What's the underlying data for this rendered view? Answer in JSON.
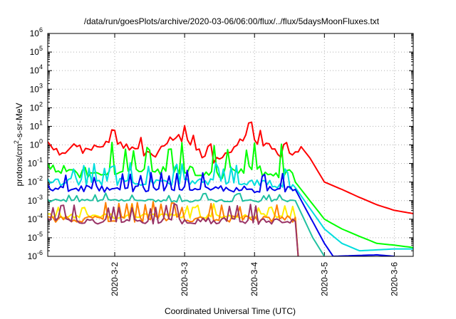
{
  "chart_data": {
    "type": "line",
    "title": "/data/run/goesPlots/archive/2020-03-06/06:00/flux/../flux/5daysMoonFluxes.txt",
    "xlabel": "Coordinated Universal Time (UTC)",
    "ylabel": "protons/cm2-s-sr-MeV",
    "ylabel_parts": {
      "base": "protons/cm",
      "sup": "2",
      "tail": "-s-sr-MeV"
    },
    "x_scale": "date",
    "xlim": [
      "2020-03-01T01:00",
      "2020-03-06T06:30"
    ],
    "x_ticks": [
      {
        "t": "2020-03-02T00:00",
        "label": "2020-3-2"
      },
      {
        "t": "2020-03-03T00:00",
        "label": "2020-3-3"
      },
      {
        "t": "2020-03-04T00:00",
        "label": "2020-3-4"
      },
      {
        "t": "2020-03-05T00:00",
        "label": "2020-3-5"
      },
      {
        "t": "2020-03-06T00:00",
        "label": "2020-3-6"
      }
    ],
    "y_scale": "log",
    "ylim": [
      1e-06,
      1000000.0
    ],
    "y_ticks": [
      {
        "v": 1e-06,
        "base": "10",
        "exp": "-6"
      },
      {
        "v": 1e-05,
        "base": "10",
        "exp": "-5"
      },
      {
        "v": 0.0001,
        "base": "10",
        "exp": "-4"
      },
      {
        "v": 0.001,
        "base": "10",
        "exp": "-3"
      },
      {
        "v": 0.01,
        "base": "10",
        "exp": "-2"
      },
      {
        "v": 0.1,
        "base": "10",
        "exp": "-1"
      },
      {
        "v": 1,
        "base": "10",
        "exp": "0"
      },
      {
        "v": 10,
        "base": "10",
        "exp": "1"
      },
      {
        "v": 100,
        "base": "10",
        "exp": "2"
      },
      {
        "v": 1000,
        "base": "10",
        "exp": "3"
      },
      {
        "v": 10000,
        "base": "10",
        "exp": "4"
      },
      {
        "v": 100000,
        "base": "10",
        "exp": "5"
      },
      {
        "v": 1000000,
        "base": "10",
        "exp": "6"
      }
    ],
    "grid": true,
    "legend": "none",
    "series": [
      {
        "color": "#ff0000",
        "points": [
          [
            "2020-03-01T01:00",
            1.0
          ],
          [
            "2020-03-01T04:00",
            0.5
          ],
          [
            "2020-03-01T07:00",
            0.3
          ],
          [
            "2020-03-01T10:00",
            1.2
          ],
          [
            "2020-03-01T13:00",
            0.5
          ],
          [
            "2020-03-01T16:00",
            0.7
          ],
          [
            "2020-03-01T19:00",
            1.0
          ],
          [
            "2020-03-01T22:00",
            1.5
          ],
          [
            "2020-03-02T01:00",
            1.0
          ],
          [
            "2020-03-02T04:00",
            0.9
          ],
          [
            "2020-03-02T07:00",
            0.6
          ],
          [
            "2020-03-02T10:00",
            0.35
          ],
          [
            "2020-03-02T13:00",
            0.25
          ],
          [
            "2020-03-02T16:00",
            0.6
          ],
          [
            "2020-03-02T19:00",
            2.0
          ],
          [
            "2020-03-02T22:00",
            2.5
          ],
          [
            "2020-03-03T01:00",
            1.5
          ],
          [
            "2020-03-03T04:00",
            0.6
          ],
          [
            "2020-03-03T07:00",
            0.2
          ],
          [
            "2020-03-03T10:00",
            0.15
          ],
          [
            "2020-03-03T13:00",
            0.3
          ],
          [
            "2020-03-03T16:00",
            0.5
          ],
          [
            "2020-03-03T19:00",
            2.0
          ],
          [
            "2020-03-03T22:00",
            3.0
          ],
          [
            "2020-03-04T01:00",
            1.5
          ],
          [
            "2020-03-04T04:00",
            1.0
          ],
          [
            "2020-03-04T07:00",
            0.5
          ],
          [
            "2020-03-04T10:00",
            0.25
          ],
          [
            "2020-03-04T13:00",
            0.3
          ],
          [
            "2020-03-04T16:00",
            0.8
          ],
          [
            "2020-03-04T19:00",
            0.2
          ],
          [
            "2020-03-05T00:00",
            0.01
          ],
          [
            "2020-03-05T06:00",
            0.004
          ],
          [
            "2020-03-05T12:00",
            0.0015
          ],
          [
            "2020-03-05T18:00",
            0.0006
          ],
          [
            "2020-03-06T00:00",
            0.0003
          ],
          [
            "2020-03-06T06:30",
            0.0002
          ]
        ]
      },
      {
        "color": "#00ff00",
        "points": [
          [
            "2020-03-01T01:00",
            0.05
          ],
          [
            "2020-03-01T12:00",
            0.03
          ],
          [
            "2020-03-02T00:00",
            0.04
          ],
          [
            "2020-03-02T12:00",
            0.03
          ],
          [
            "2020-03-03T00:00",
            0.04
          ],
          [
            "2020-03-03T12:00",
            0.03
          ],
          [
            "2020-03-04T00:00",
            0.04
          ],
          [
            "2020-03-04T12:00",
            0.03
          ],
          [
            "2020-03-04T14:00",
            0.01
          ],
          [
            "2020-03-05T00:00",
            0.0001
          ],
          [
            "2020-03-05T06:00",
            3e-05
          ],
          [
            "2020-03-05T12:00",
            1.2e-05
          ],
          [
            "2020-03-05T18:00",
            5e-06
          ],
          [
            "2020-03-06T00:00",
            4e-06
          ],
          [
            "2020-03-06T06:30",
            3e-06
          ]
        ]
      },
      {
        "color": "#00dddd",
        "points": [
          [
            "2020-03-01T01:00",
            0.01
          ],
          [
            "2020-03-02T00:00",
            0.01
          ],
          [
            "2020-03-03T00:00",
            0.01
          ],
          [
            "2020-03-04T00:00",
            0.01
          ],
          [
            "2020-03-04T14:00",
            0.005
          ],
          [
            "2020-03-05T00:00",
            3e-05
          ],
          [
            "2020-03-05T06:00",
            5e-06
          ],
          [
            "2020-03-05T12:00",
            2e-06
          ],
          [
            "2020-03-06T00:00",
            2.5e-06
          ],
          [
            "2020-03-06T06:30",
            2.5e-06
          ]
        ]
      },
      {
        "color": "#0000ee",
        "points": [
          [
            "2020-03-01T01:00",
            0.005
          ],
          [
            "2020-03-02T00:00",
            0.004
          ],
          [
            "2020-03-03T00:00",
            0.005
          ],
          [
            "2020-03-04T00:00",
            0.004
          ],
          [
            "2020-03-04T14:00",
            0.004
          ],
          [
            "2020-03-05T00:00",
            5e-06
          ],
          [
            "2020-03-05T03:00",
            1e-06
          ],
          [
            "2020-03-05T18:00",
            1.2e-06
          ],
          [
            "2020-03-06T00:00",
            1e-06
          ]
        ]
      },
      {
        "color": "#20c0a0",
        "points": [
          [
            "2020-03-01T01:00",
            0.001
          ],
          [
            "2020-03-04T14:00",
            0.001
          ],
          [
            "2020-03-04T20:00",
            1e-05
          ],
          [
            "2020-03-05T00:00",
            1e-06
          ]
        ]
      },
      {
        "color": "#ffee00",
        "points": [
          [
            "2020-03-01T01:00",
            0.00015
          ],
          [
            "2020-03-04T14:00",
            0.00015
          ],
          [
            "2020-03-04T15:00",
            1e-06
          ]
        ]
      },
      {
        "color": "#ff8000",
        "points": [
          [
            "2020-03-01T01:00",
            0.0001
          ],
          [
            "2020-03-04T14:00",
            0.0001
          ],
          [
            "2020-03-04T15:00",
            1e-06
          ]
        ]
      },
      {
        "color": "#993366",
        "points": [
          [
            "2020-03-01T01:00",
            8e-05
          ],
          [
            "2020-03-04T14:00",
            8e-05
          ],
          [
            "2020-03-04T15:00",
            1e-06
          ]
        ]
      }
    ]
  }
}
